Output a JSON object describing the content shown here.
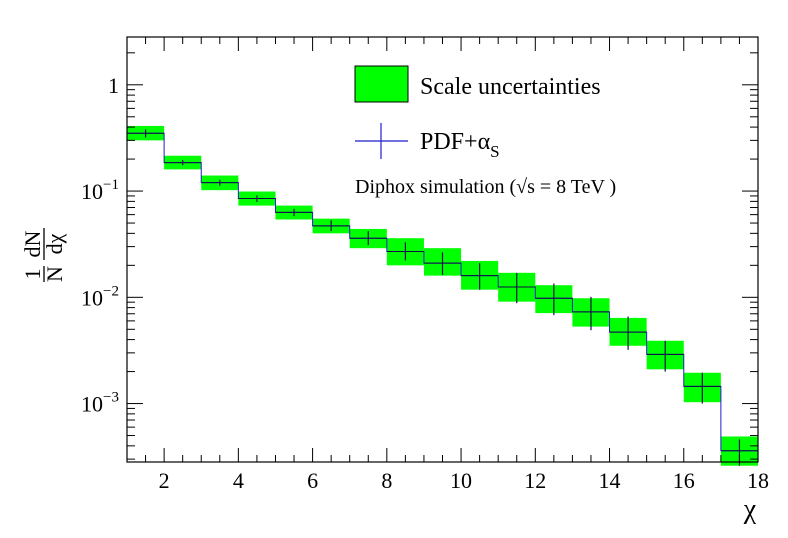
{
  "chart_data": {
    "type": "histogram-step",
    "title": "",
    "xlabel": "χ",
    "ylabel": {
      "numerator": "dN",
      "denominator": "dχ",
      "prefix_num": "1",
      "prefix_den": "N"
    },
    "xlim": [
      1,
      18
    ],
    "ylim_log10": [
      -3.55,
      0.45
    ],
    "yscale": "log",
    "x_ticks": [
      2,
      4,
      6,
      8,
      10,
      12,
      14,
      16,
      18
    ],
    "x_tick_labels": [
      "2",
      "4",
      "6",
      "8",
      "10",
      "12",
      "14",
      "16",
      "18"
    ],
    "y_ticks": [
      {
        "exp": 0,
        "base": "1",
        "sup": ""
      },
      {
        "exp": -1,
        "base": "10",
        "sup": "−1"
      },
      {
        "exp": -2,
        "base": "10",
        "sup": "−2"
      },
      {
        "exp": -3,
        "base": "10",
        "sup": "−3"
      }
    ],
    "bin_edges": [
      1,
      2,
      3,
      4,
      5,
      6,
      7,
      8,
      9,
      10,
      11,
      12,
      13,
      14,
      15,
      16,
      17,
      18
    ],
    "series": [
      {
        "name": "Scale uncertainties",
        "color": "#00ff00",
        "kind": "band",
        "values": [
          0.35,
          0.185,
          0.12,
          0.085,
          0.063,
          0.047,
          0.036,
          0.027,
          0.021,
          0.016,
          0.0125,
          0.0098,
          0.0073,
          0.0047,
          0.0029,
          0.00145,
          0.00036
        ],
        "low": [
          0.3,
          0.16,
          0.102,
          0.073,
          0.054,
          0.04,
          0.029,
          0.02,
          0.016,
          0.0118,
          0.0091,
          0.0071,
          0.0053,
          0.0035,
          0.0021,
          0.00103,
          0.00026
        ],
        "high": [
          0.41,
          0.215,
          0.14,
          0.099,
          0.073,
          0.055,
          0.044,
          0.036,
          0.029,
          0.022,
          0.017,
          0.013,
          0.0098,
          0.0064,
          0.0039,
          0.00195,
          0.00049
        ]
      },
      {
        "name": "PDF+α",
        "name_sub": "S",
        "color": "#1f1fcc",
        "kind": "errorbar",
        "values": [
          0.35,
          0.185,
          0.12,
          0.085,
          0.063,
          0.047,
          0.036,
          0.027,
          0.021,
          0.016,
          0.0125,
          0.0098,
          0.0073,
          0.0047,
          0.0029,
          0.00145,
          0.00036
        ],
        "err_low": [
          0.32,
          0.175,
          0.112,
          0.079,
          0.058,
          0.042,
          0.031,
          0.0222,
          0.0162,
          0.0118,
          0.0088,
          0.0068,
          0.0049,
          0.0032,
          0.002,
          0.001,
          0.00026
        ],
        "err_high": [
          0.38,
          0.196,
          0.128,
          0.091,
          0.068,
          0.053,
          0.042,
          0.033,
          0.0265,
          0.021,
          0.017,
          0.0135,
          0.0101,
          0.0066,
          0.0039,
          0.00195,
          0.00046
        ]
      }
    ],
    "legend": {
      "position": "top-right",
      "entries": [
        {
          "label": "Scale uncertainties",
          "sub": ""
        },
        {
          "label": "PDF+α",
          "sub": "S"
        }
      ]
    },
    "annotation": "Diphox simulation (√s = 8 TeV )"
  }
}
